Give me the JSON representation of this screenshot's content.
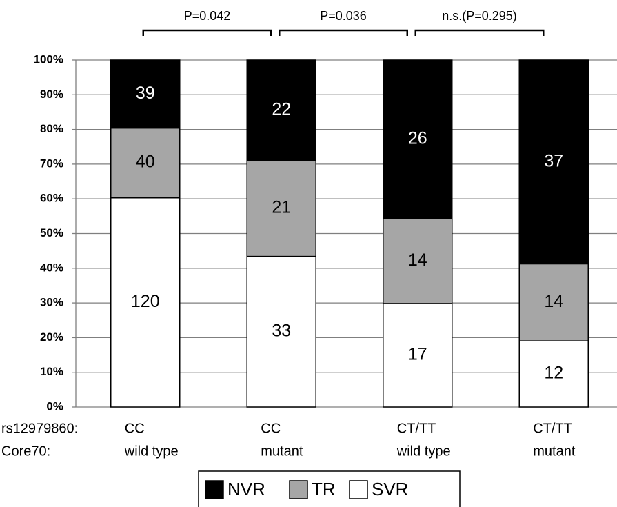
{
  "chart_data": {
    "type": "stacked100",
    "categories": [
      [
        "CC",
        "wild type"
      ],
      [
        "CC",
        "mutant"
      ],
      [
        "CT/TT",
        "wild type"
      ],
      [
        "CT/TT",
        "mutant"
      ]
    ],
    "row_labels": [
      "rs12979860:",
      "Core70:"
    ],
    "series": [
      {
        "name": "SVR",
        "color": "#ffffff",
        "label_color": "#000000",
        "values": [
          120,
          33,
          17,
          12
        ]
      },
      {
        "name": "TR",
        "color": "#a6a6a6",
        "label_color": "#000000",
        "values": [
          40,
          21,
          14,
          14
        ]
      },
      {
        "name": "NVR",
        "color": "#000000",
        "label_color": "#ffffff",
        "values": [
          39,
          22,
          26,
          37
        ]
      }
    ],
    "annotations": [
      "P=0.042",
      "P=0.036",
      "n.s.(P=0.295)"
    ],
    "ylim": [
      0,
      100
    ],
    "yticks": [
      {
        "value": 0,
        "label": "0%"
      },
      {
        "value": 10,
        "label": "10%"
      },
      {
        "value": 20,
        "label": "20%"
      },
      {
        "value": 30,
        "label": "30%"
      },
      {
        "value": 40,
        "label": "40%"
      },
      {
        "value": 50,
        "label": "50%"
      },
      {
        "value": 60,
        "label": "60%"
      },
      {
        "value": 70,
        "label": "70%"
      },
      {
        "value": 80,
        "label": "80%"
      },
      {
        "value": 90,
        "label": "90%"
      },
      {
        "value": 100,
        "label": "100%"
      }
    ],
    "grid": true
  }
}
